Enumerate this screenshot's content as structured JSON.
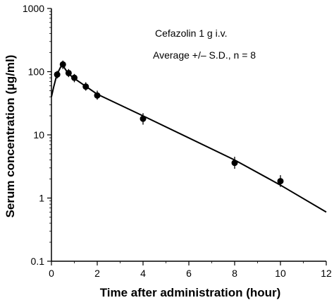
{
  "chart_data": {
    "type": "scatter",
    "xlabel": "Time after administration (hour)",
    "ylabel": "Serum concentration (µg/ml)",
    "xlim": [
      0,
      12
    ],
    "ylim": [
      0.1,
      1000
    ],
    "y_scale": "log",
    "grid": false,
    "x_ticks": [
      "0",
      "2",
      "4",
      "6",
      "8",
      "10",
      "12"
    ],
    "y_ticks": [
      "0.1",
      "1",
      "10",
      "100",
      "1000"
    ],
    "annotations": [
      "Cefazolin 1 g i.v.",
      "Average +/– S.D., n = 8"
    ],
    "series": [
      {
        "kind": "points_with_sd",
        "x": [
          0.25,
          0.5,
          0.75,
          1.0,
          1.5,
          2.0,
          4.0,
          8.0,
          10.0
        ],
        "y": [
          90,
          130,
          95,
          80,
          58,
          42,
          18,
          3.6,
          1.85
        ],
        "y_low": [
          78,
          110,
          82,
          68,
          50,
          36,
          14.5,
          2.9,
          1.5
        ],
        "y_high": [
          103,
          150,
          110,
          92,
          68,
          50,
          22,
          4.5,
          2.3
        ]
      },
      {
        "kind": "fitted_curve",
        "x": [
          0,
          0.1,
          0.2,
          0.3,
          0.4,
          0.5,
          0.6,
          0.75,
          1.0,
          2.0,
          4.0,
          8.0,
          10.0,
          12.0
        ],
        "y": [
          40,
          58,
          80,
          100,
          118,
          125,
          110,
          92,
          78,
          44,
          20,
          4.0,
          1.6,
          0.6
        ]
      }
    ]
  }
}
